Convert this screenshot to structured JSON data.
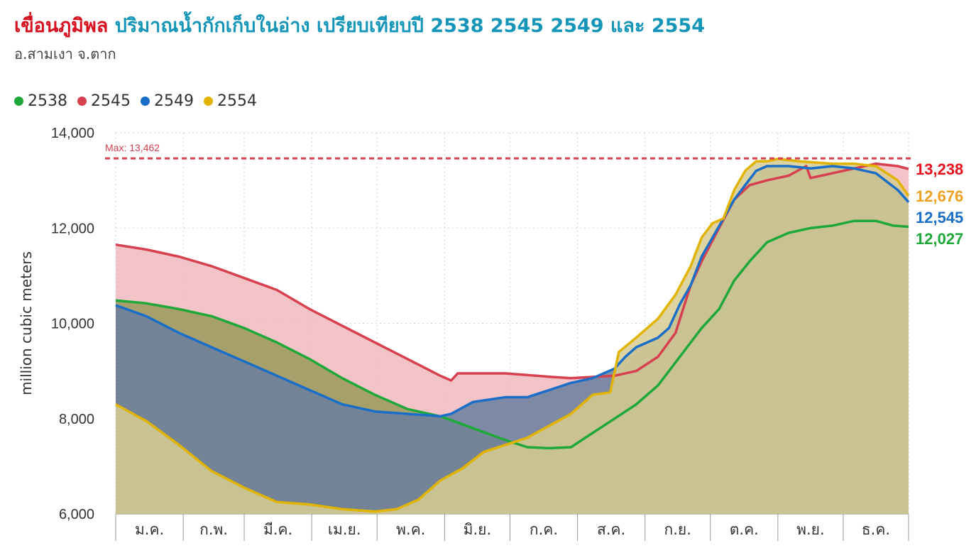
{
  "header": {
    "dam_name": "เขื่อนภูมิพล",
    "title_rest": "ปริมาณน้ำกักเก็บในอ่าง เปรียบเทียบปี 2538 2545 2549 และ 2554",
    "subtitle": "อ.สามเงา จ.ตาก"
  },
  "chart_data": {
    "type": "area",
    "ylabel": "million cubic meters",
    "ylim": [
      6000,
      14000
    ],
    "yticks": [
      6000,
      8000,
      10000,
      12000,
      14000
    ],
    "ytick_labels": [
      "6,000",
      "8,000",
      "10,000",
      "12,000",
      "14,000"
    ],
    "months": [
      "ม.ค.",
      "ก.พ.",
      "มี.ค.",
      "เม.ย.",
      "พ.ค.",
      "มิ.ย.",
      "ก.ค.",
      "ส.ค.",
      "ก.ย.",
      "ต.ค.",
      "พ.ย.",
      "ธ.ค."
    ],
    "grid": true,
    "legend_position": "top-left",
    "max_line": {
      "value": 13462,
      "label": "Max: 13,462",
      "color": "#d6404f"
    },
    "x_unit": "day of year",
    "series": [
      {
        "name": "2545",
        "color": "#d6404f",
        "fill": "#f0b8bd",
        "end_label": "13,238",
        "end_color": "#e8101c",
        "points": [
          [
            1,
            11650
          ],
          [
            15,
            11550
          ],
          [
            30,
            11400
          ],
          [
            45,
            11200
          ],
          [
            60,
            10950
          ],
          [
            75,
            10700
          ],
          [
            90,
            10300
          ],
          [
            105,
            9950
          ],
          [
            120,
            9600
          ],
          [
            135,
            9250
          ],
          [
            150,
            8900
          ],
          [
            155,
            8800
          ],
          [
            158,
            8950
          ],
          [
            180,
            8950
          ],
          [
            200,
            8880
          ],
          [
            210,
            8850
          ],
          [
            230,
            8900
          ],
          [
            240,
            9000
          ],
          [
            250,
            9300
          ],
          [
            258,
            9800
          ],
          [
            265,
            10800
          ],
          [
            270,
            11300
          ],
          [
            278,
            12000
          ],
          [
            285,
            12600
          ],
          [
            292,
            12900
          ],
          [
            300,
            13000
          ],
          [
            310,
            13100
          ],
          [
            318,
            13300
          ],
          [
            320,
            13050
          ],
          [
            330,
            13150
          ],
          [
            340,
            13250
          ],
          [
            350,
            13350
          ],
          [
            360,
            13300
          ],
          [
            365,
            13238
          ]
        ]
      },
      {
        "name": "2538",
        "color": "#1fa83a",
        "fill": "#9a9a5a",
        "end_label": "12,027",
        "end_color": "#1fa83a",
        "points": [
          [
            1,
            10480
          ],
          [
            15,
            10420
          ],
          [
            30,
            10300
          ],
          [
            45,
            10150
          ],
          [
            60,
            9900
          ],
          [
            75,
            9600
          ],
          [
            90,
            9250
          ],
          [
            105,
            8850
          ],
          [
            120,
            8500
          ],
          [
            135,
            8200
          ],
          [
            150,
            8050
          ],
          [
            165,
            7800
          ],
          [
            180,
            7550
          ],
          [
            190,
            7400
          ],
          [
            200,
            7380
          ],
          [
            210,
            7400
          ],
          [
            220,
            7700
          ],
          [
            230,
            8000
          ],
          [
            240,
            8300
          ],
          [
            250,
            8700
          ],
          [
            260,
            9300
          ],
          [
            270,
            9900
          ],
          [
            278,
            10300
          ],
          [
            285,
            10900
          ],
          [
            292,
            11300
          ],
          [
            300,
            11700
          ],
          [
            310,
            11900
          ],
          [
            320,
            12000
          ],
          [
            330,
            12050
          ],
          [
            340,
            12150
          ],
          [
            350,
            12150
          ],
          [
            358,
            12050
          ],
          [
            365,
            12027
          ]
        ]
      },
      {
        "name": "2549",
        "color": "#1a6ec8",
        "fill": "#6a7fa0",
        "end_label": "12,545",
        "end_color": "#1a6ec8",
        "points": [
          [
            1,
            10380
          ],
          [
            15,
            10150
          ],
          [
            30,
            9800
          ],
          [
            45,
            9500
          ],
          [
            60,
            9200
          ],
          [
            75,
            8900
          ],
          [
            90,
            8600
          ],
          [
            105,
            8300
          ],
          [
            120,
            8150
          ],
          [
            135,
            8100
          ],
          [
            150,
            8050
          ],
          [
            155,
            8100
          ],
          [
            165,
            8350
          ],
          [
            180,
            8450
          ],
          [
            190,
            8450
          ],
          [
            200,
            8600
          ],
          [
            210,
            8750
          ],
          [
            220,
            8850
          ],
          [
            230,
            9050
          ],
          [
            235,
            9300
          ],
          [
            240,
            9500
          ],
          [
            245,
            9600
          ],
          [
            250,
            9700
          ],
          [
            255,
            9900
          ],
          [
            260,
            10400
          ],
          [
            265,
            10800
          ],
          [
            270,
            11400
          ],
          [
            275,
            11800
          ],
          [
            280,
            12200
          ],
          [
            285,
            12600
          ],
          [
            290,
            12900
          ],
          [
            295,
            13200
          ],
          [
            300,
            13300
          ],
          [
            310,
            13300
          ],
          [
            320,
            13250
          ],
          [
            330,
            13300
          ],
          [
            340,
            13250
          ],
          [
            350,
            13150
          ],
          [
            360,
            12800
          ],
          [
            365,
            12545
          ]
        ]
      },
      {
        "name": "2554",
        "color": "#e0b400",
        "fill": "#d8cc90",
        "end_label": "12,676",
        "end_color": "#f0a020",
        "points": [
          [
            1,
            8300
          ],
          [
            15,
            7950
          ],
          [
            30,
            7450
          ],
          [
            45,
            6900
          ],
          [
            60,
            6550
          ],
          [
            75,
            6250
          ],
          [
            90,
            6200
          ],
          [
            105,
            6100
          ],
          [
            120,
            6050
          ],
          [
            130,
            6100
          ],
          [
            140,
            6300
          ],
          [
            150,
            6700
          ],
          [
            160,
            6950
          ],
          [
            170,
            7300
          ],
          [
            180,
            7450
          ],
          [
            190,
            7600
          ],
          [
            200,
            7850
          ],
          [
            210,
            8100
          ],
          [
            220,
            8500
          ],
          [
            228,
            8550
          ],
          [
            232,
            9400
          ],
          [
            240,
            9700
          ],
          [
            250,
            10100
          ],
          [
            258,
            10600
          ],
          [
            265,
            11200
          ],
          [
            270,
            11800
          ],
          [
            275,
            12100
          ],
          [
            280,
            12200
          ],
          [
            285,
            12800
          ],
          [
            290,
            13200
          ],
          [
            295,
            13400
          ],
          [
            300,
            13400
          ],
          [
            305,
            13450
          ],
          [
            315,
            13400
          ],
          [
            330,
            13350
          ],
          [
            340,
            13350
          ],
          [
            350,
            13300
          ],
          [
            360,
            13000
          ],
          [
            365,
            12676
          ]
        ]
      }
    ]
  }
}
